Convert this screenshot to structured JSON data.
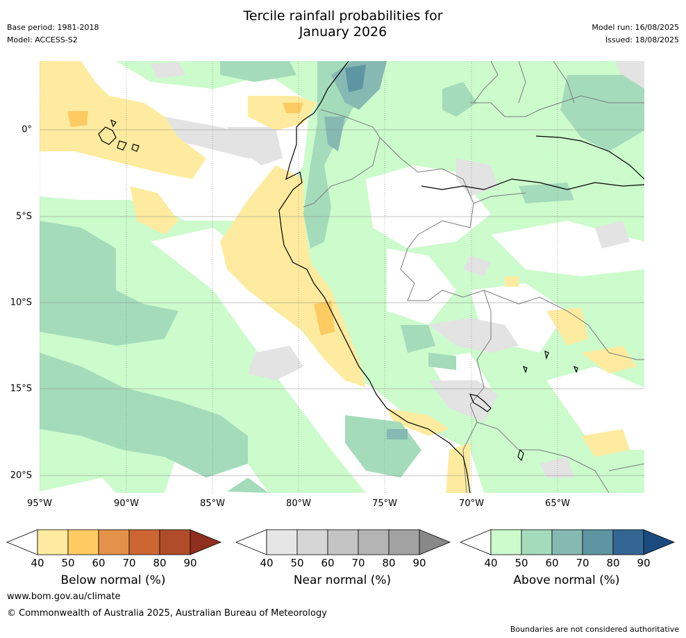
{
  "header": {
    "base_period": "Base period: 1981-2018",
    "model": "Model: ACCESS-S2",
    "title_line1": "Tercile rainfall probabilities for",
    "title_line2": "January 2026",
    "model_run": "Model run: 16/08/2025",
    "issued": "Issued: 18/08/2025"
  },
  "axes": {
    "x_ticks": [
      "95°W",
      "90°W",
      "85°W",
      "80°W",
      "75°W",
      "70°W",
      "65°W"
    ],
    "y_ticks": [
      "0°",
      "5°S",
      "10°S",
      "15°S",
      "20°S"
    ]
  },
  "colorbars": [
    {
      "label": "Below normal (%)",
      "ticks": [
        "40",
        "50",
        "60",
        "70",
        "80",
        "90"
      ],
      "colors": [
        "#ffffff",
        "#feeb9f",
        "#fdcb62",
        "#e3924a",
        "#cc6633",
        "#b14c2a",
        "#8e2f1f"
      ]
    },
    {
      "label": "Near normal (%)",
      "ticks": [
        "40",
        "50",
        "60",
        "70",
        "80",
        "90"
      ],
      "colors": [
        "#ffffff",
        "#e6e6e6",
        "#d6d6d6",
        "#c4c4c4",
        "#b4b4b4",
        "#a2a2a2",
        "#888888"
      ]
    },
    {
      "label": "Above normal (%)",
      "ticks": [
        "40",
        "50",
        "60",
        "70",
        "80",
        "90"
      ],
      "colors": [
        "#ffffff",
        "#ccfbcc",
        "#a4dbbb",
        "#86b9b2",
        "#5d95a2",
        "#346694",
        "#1a4a7e"
      ]
    }
  ],
  "footer": {
    "website": "www.bom.gov.au/climate",
    "copyright": "© Commonwealth of Australia 2025, Australian Bureau of Meteorology",
    "disclaimer": "Boundaries are not considered authoritative"
  }
}
